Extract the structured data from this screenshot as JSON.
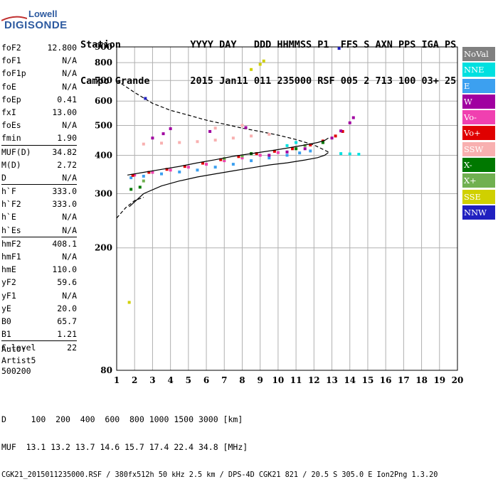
{
  "logo": {
    "line1": "Lowell",
    "line2": "DIGISONDE"
  },
  "header": {
    "line1": "Station            YYYY DAY   DDD HHMMSS P1  FFS S AXN PPS IGA PS",
    "line2": "Campo Grande       2015 Jan11 011 235000 RSF 005 2 713 100 03+ 25"
  },
  "params": [
    {
      "group": [
        {
          "key": "foF2",
          "value": "12.800"
        },
        {
          "key": "foF1",
          "value": "N/A"
        },
        {
          "key": "foF1p",
          "value": "N/A"
        },
        {
          "key": "foE",
          "value": "N/A"
        },
        {
          "key": "foEp",
          "value": "0.41"
        },
        {
          "key": "fxI",
          "value": "13.00"
        },
        {
          "key": "foEs",
          "value": "N/A"
        },
        {
          "key": "fmin",
          "value": "1.90"
        }
      ]
    },
    {
      "group": [
        {
          "key": "MUF(D)",
          "value": "34.82"
        },
        {
          "key": "M(D)",
          "value": "2.72"
        },
        {
          "key": "D",
          "value": "N/A"
        }
      ]
    },
    {
      "group": [
        {
          "key": "h`F",
          "value": "333.0"
        },
        {
          "key": "h`F2",
          "value": "333.0"
        },
        {
          "key": "h`E",
          "value": "N/A"
        },
        {
          "key": "h`Es",
          "value": "N/A"
        }
      ]
    },
    {
      "group": [
        {
          "key": "hmF2",
          "value": "408.1"
        },
        {
          "key": "hmF1",
          "value": "N/A"
        },
        {
          "key": "hmE",
          "value": "110.0"
        },
        {
          "key": "yF2",
          "value": "59.6"
        },
        {
          "key": "yF1",
          "value": "N/A"
        },
        {
          "key": "yE",
          "value": "20.0"
        },
        {
          "key": "B0",
          "value": "65.7"
        },
        {
          "key": "B1",
          "value": "1.21"
        }
      ]
    },
    {
      "group": [
        {
          "key": "C-level",
          "value": "22"
        }
      ]
    }
  ],
  "auto": {
    "line1": "Auto:",
    "line2": "Artist5",
    "line3": "500200"
  },
  "footer": {
    "line1": "D     100  200  400  600  800 1000 1500 3000 [km]",
    "line2": "MUF  13.1 13.2 13.7 14.6 15.7 17.4 22.4 34.8 [MHz]",
    "line3": "CGK21_2015011235000.RSF / 380fx512h 50 kHz 2.5 km / DPS-4D CGK21 821 / 20.5 S 305.0 E Ion2Png 1.3.20"
  },
  "legend": [
    {
      "label": "NoVal",
      "bg": "#808080",
      "fg": "#ffffff"
    },
    {
      "label": "NNE",
      "bg": "#00e0e0",
      "fg": "#ffffff"
    },
    {
      "label": "E",
      "bg": "#3ca0f0",
      "fg": "#ffffff"
    },
    {
      "label": "W",
      "bg": "#a000a0",
      "fg": "#ffffff"
    },
    {
      "label": "Vo-",
      "bg": "#f040b0",
      "fg": "#ffffff"
    },
    {
      "label": "Vo+",
      "bg": "#e00000",
      "fg": "#ffffff"
    },
    {
      "label": "SSW",
      "bg": "#f8b0b0",
      "fg": "#ffffff"
    },
    {
      "label": "X-",
      "bg": "#007800",
      "fg": "#ffffff"
    },
    {
      "label": "X+",
      "bg": "#70b050",
      "fg": "#ffffff"
    },
    {
      "label": "SSE",
      "bg": "#d0d000",
      "fg": "#ffffff"
    },
    {
      "label": "NNW",
      "bg": "#2020c0",
      "fg": "#ffffff"
    }
  ],
  "chart_data": {
    "type": "scatter",
    "xlim": [
      1,
      20
    ],
    "ylim": [
      80,
      900
    ],
    "x_ticks": [
      1,
      2,
      3,
      4,
      5,
      6,
      7,
      8,
      9,
      10,
      11,
      12,
      13,
      14,
      15,
      16,
      17,
      18,
      19,
      20
    ],
    "y_ticks": [
      80,
      200,
      300,
      400,
      500,
      600,
      700,
      800,
      900
    ],
    "y_scale": "log",
    "grid": true,
    "legend_position": "right",
    "series": [
      {
        "name": "E",
        "color": "#3ca0f0",
        "points": [
          [
            1.8,
            338
          ],
          [
            2.5,
            342
          ],
          [
            3.5,
            348
          ],
          [
            4.5,
            353
          ],
          [
            5.5,
            358
          ],
          [
            6.5,
            366
          ],
          [
            7.5,
            374
          ],
          [
            8.5,
            384
          ],
          [
            9.5,
            392
          ],
          [
            10.5,
            400
          ],
          [
            11.2,
            407
          ],
          [
            11.8,
            413
          ]
        ]
      },
      {
        "name": "Vo-",
        "color": "#f040b0",
        "points": [
          [
            2.0,
            345
          ],
          [
            3.0,
            352
          ],
          [
            4.0,
            358
          ],
          [
            5.0,
            366
          ],
          [
            6.0,
            374
          ],
          [
            7.0,
            384
          ],
          [
            8.0,
            392
          ],
          [
            9.0,
            400
          ],
          [
            10.0,
            408
          ]
        ]
      },
      {
        "name": "Vo+",
        "color": "#e00000",
        "points": [
          [
            1.9,
            344
          ],
          [
            2.8,
            352
          ],
          [
            3.8,
            360
          ],
          [
            4.8,
            368
          ],
          [
            5.8,
            377
          ],
          [
            6.8,
            387
          ],
          [
            7.8,
            396
          ],
          [
            8.8,
            405
          ],
          [
            9.8,
            412
          ],
          [
            10.8,
            420
          ],
          [
            11.8,
            432
          ],
          [
            12.5,
            445
          ],
          [
            13.2,
            462
          ],
          [
            13.6,
            478
          ]
        ]
      },
      {
        "name": "W",
        "color": "#a000a0",
        "points": [
          [
            9.5,
            400
          ],
          [
            10.5,
            410
          ],
          [
            11.5,
            420
          ],
          [
            12.5,
            440
          ],
          [
            13.0,
            455
          ],
          [
            13.5,
            480
          ],
          [
            14.0,
            510
          ],
          [
            14.2,
            530
          ],
          [
            3.0,
            455
          ],
          [
            3.6,
            470
          ],
          [
            4.0,
            488
          ],
          [
            6.2,
            478
          ],
          [
            8.2,
            492
          ]
        ]
      },
      {
        "name": "SSW",
        "color": "#f8b0b0",
        "points": [
          [
            2.5,
            435
          ],
          [
            3.5,
            438
          ],
          [
            4.5,
            440
          ],
          [
            5.5,
            443
          ],
          [
            6.5,
            448
          ],
          [
            7.5,
            455
          ],
          [
            8.5,
            462
          ],
          [
            9.5,
            468
          ],
          [
            6.5,
            490
          ],
          [
            8.0,
            500
          ]
        ]
      },
      {
        "name": "X-",
        "color": "#007800",
        "points": [
          [
            1.8,
            310
          ],
          [
            2.3,
            315
          ],
          [
            8.5,
            405
          ],
          [
            11.0,
            420
          ],
          [
            12.5,
            440
          ]
        ]
      },
      {
        "name": "X+",
        "color": "#70b050",
        "points": [
          [
            2.5,
            330
          ],
          [
            7.0,
            390
          ],
          [
            8.0,
            398
          ],
          [
            11.5,
            430
          ]
        ]
      },
      {
        "name": "SSE",
        "color": "#d0d000",
        "points": [
          [
            1.7,
            133
          ],
          [
            8.5,
            760
          ],
          [
            9.0,
            790
          ],
          [
            9.2,
            810
          ]
        ]
      },
      {
        "name": "NNE",
        "color": "#00e0e0",
        "points": [
          [
            10.5,
            430
          ],
          [
            11.0,
            440
          ],
          [
            13.5,
            405
          ],
          [
            14.0,
            404
          ],
          [
            14.5,
            403
          ]
        ]
      },
      {
        "name": "NNW",
        "color": "#2020c0",
        "points": [
          [
            2.6,
            612
          ],
          [
            13.4,
            890
          ]
        ]
      }
    ],
    "profile_upper": {
      "points": [
        [
          1.6,
          345
        ],
        [
          2.5,
          352
        ],
        [
          3.5,
          360
        ],
        [
          4.5,
          368
        ],
        [
          5.5,
          378
        ],
        [
          6.5,
          387
        ],
        [
          7.5,
          397
        ],
        [
          8.5,
          405
        ],
        [
          9.5,
          413
        ],
        [
          10.5,
          422
        ],
        [
          11.5,
          432
        ],
        [
          12.2,
          440
        ],
        [
          12.6,
          447
        ],
        [
          12.8,
          455
        ]
      ]
    },
    "profile_lower": {
      "points": [
        [
          1.7,
          272
        ],
        [
          2.5,
          300
        ],
        [
          3.5,
          318
        ],
        [
          4.5,
          330
        ],
        [
          5.5,
          340
        ],
        [
          6.5,
          348
        ],
        [
          7.5,
          356
        ],
        [
          8.5,
          364
        ],
        [
          9.5,
          372
        ],
        [
          10.5,
          378
        ],
        [
          11.5,
          386
        ],
        [
          12.2,
          393
        ],
        [
          12.6,
          400
        ],
        [
          12.8,
          408
        ]
      ]
    },
    "muf_curve": {
      "points": [
        [
          1.0,
          700
        ],
        [
          2.0,
          640
        ],
        [
          3.0,
          590
        ],
        [
          4.0,
          560
        ],
        [
          5.0,
          540
        ],
        [
          6.0,
          520
        ],
        [
          7.0,
          505
        ],
        [
          8.0,
          490
        ],
        [
          9.0,
          478
        ],
        [
          10.0,
          465
        ],
        [
          11.0,
          450
        ],
        [
          12.0,
          432
        ],
        [
          12.8,
          410
        ]
      ]
    },
    "muf_curve_lower": {
      "points": [
        [
          1.0,
          250
        ],
        [
          1.5,
          270
        ],
        [
          2.0,
          285
        ],
        [
          2.5,
          292
        ]
      ]
    }
  }
}
